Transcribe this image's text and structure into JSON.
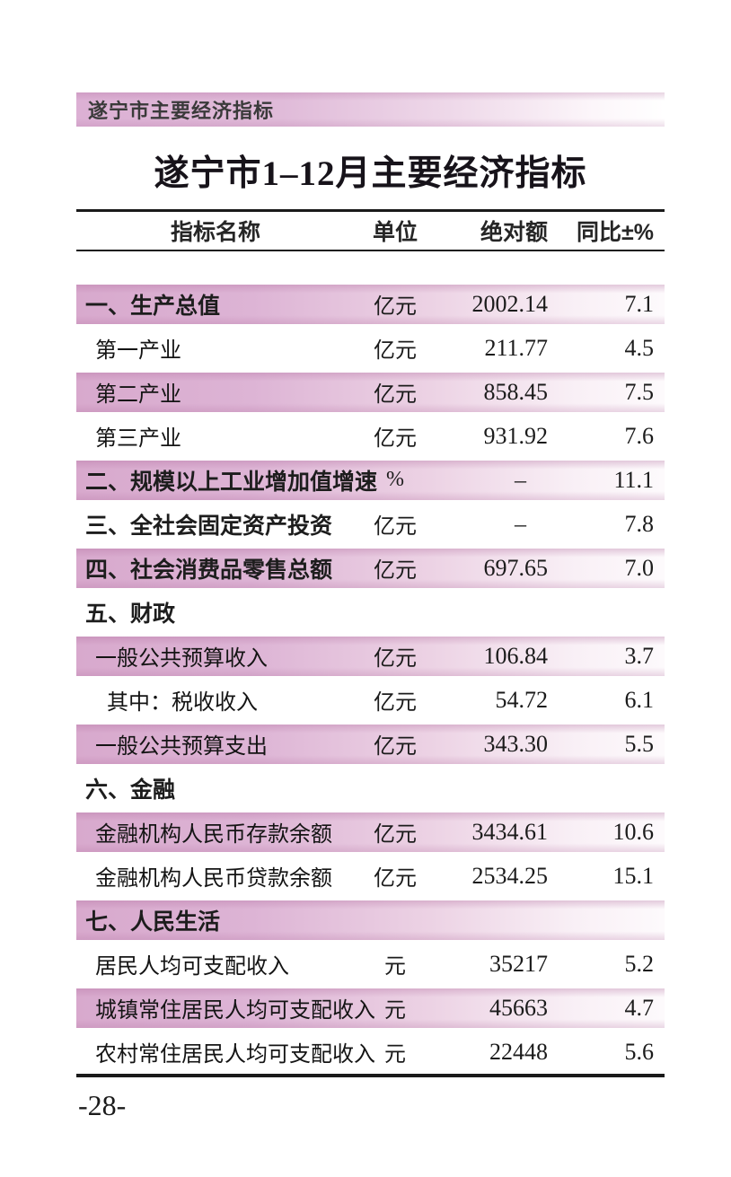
{
  "page": {
    "header_band_text": "遂宁市主要经济指标",
    "title": "遂宁市1–12月主要经济指标",
    "page_number": "-28-"
  },
  "colors": {
    "highlight_pink": "#d8a9cd",
    "band_pink": "#dcb0d4",
    "text": "#1b1b1b",
    "rule": "#1a1a1a"
  },
  "table": {
    "columns": [
      "指标名称",
      "单位",
      "绝对额",
      "同比±%"
    ],
    "rows": [
      {
        "name": "一、生产总值",
        "unit": "亿元",
        "value": "2002.14",
        "yoy": "7.1",
        "highlight": true,
        "section": true,
        "indent": 0
      },
      {
        "name": "第一产业",
        "unit": "亿元",
        "value": "211.77",
        "yoy": "4.5",
        "highlight": false,
        "section": false,
        "indent": 1
      },
      {
        "name": "第二产业",
        "unit": "亿元",
        "value": "858.45",
        "yoy": "7.5",
        "highlight": true,
        "section": false,
        "indent": 1
      },
      {
        "name": "第三产业",
        "unit": "亿元",
        "value": "931.92",
        "yoy": "7.6",
        "highlight": false,
        "section": false,
        "indent": 1
      },
      {
        "name": "二、规模以上工业增加值增速",
        "unit": "%",
        "value": "–",
        "yoy": "11.1",
        "highlight": true,
        "section": true,
        "indent": 0,
        "value_dash": true
      },
      {
        "name": "三、全社会固定资产投资",
        "unit": "亿元",
        "value": "–",
        "yoy": "7.8",
        "highlight": false,
        "section": true,
        "indent": 0,
        "value_dash": true
      },
      {
        "name": "四、社会消费品零售总额",
        "unit": "亿元",
        "value": "697.65",
        "yoy": "7.0",
        "highlight": true,
        "section": true,
        "indent": 0
      },
      {
        "name": "五、财政",
        "unit": "",
        "value": "",
        "yoy": "",
        "highlight": false,
        "section": true,
        "indent": 0
      },
      {
        "name": "一般公共预算收入",
        "unit": "亿元",
        "value": "106.84",
        "yoy": "3.7",
        "highlight": true,
        "section": false,
        "indent": 1
      },
      {
        "name": "其中：税收收入",
        "unit": "亿元",
        "value": "54.72",
        "yoy": "6.1",
        "highlight": false,
        "section": false,
        "indent": 2
      },
      {
        "name": "一般公共预算支出",
        "unit": "亿元",
        "value": "343.30",
        "yoy": "5.5",
        "highlight": true,
        "section": false,
        "indent": 1
      },
      {
        "name": "六、金融",
        "unit": "",
        "value": "",
        "yoy": "",
        "highlight": false,
        "section": true,
        "indent": 0
      },
      {
        "name": "金融机构人民币存款余额",
        "unit": "亿元",
        "value": "3434.61",
        "yoy": "10.6",
        "highlight": true,
        "section": false,
        "indent": 1
      },
      {
        "name": "金融机构人民币贷款余额",
        "unit": "亿元",
        "value": "2534.25",
        "yoy": "15.1",
        "highlight": false,
        "section": false,
        "indent": 1
      },
      {
        "name": "七、人民生活",
        "unit": "",
        "value": "",
        "yoy": "",
        "highlight": true,
        "section": true,
        "indent": 0
      },
      {
        "name": "居民人均可支配收入",
        "unit": "元",
        "value": "35217",
        "yoy": "5.2",
        "highlight": false,
        "section": false,
        "indent": 1
      },
      {
        "name": "城镇常住居民人均可支配收入",
        "unit": "元",
        "value": "45663",
        "yoy": "4.7",
        "highlight": true,
        "section": false,
        "indent": 1
      },
      {
        "name": "农村常住居民人均可支配收入",
        "unit": "元",
        "value": "22448",
        "yoy": "5.6",
        "highlight": false,
        "section": false,
        "indent": 1
      }
    ]
  }
}
